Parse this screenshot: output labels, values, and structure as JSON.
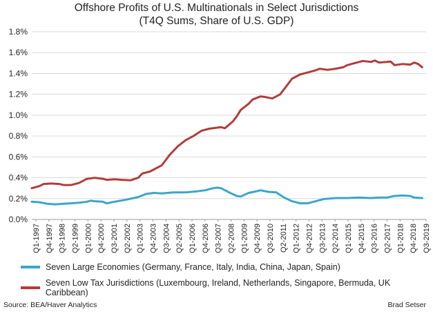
{
  "chart_data": {
    "type": "line",
    "title": "Offshore Profits of U.S. Multinationals in Select Jurisdictions",
    "subtitle": "(T4Q Sums, Share of U.S. GDP)",
    "xlabel": "",
    "ylabel": "",
    "ylim": [
      0,
      1.8
    ],
    "yticks": [
      "0.0%",
      "0.2%",
      "0.4%",
      "0.6%",
      "0.8%",
      "1.0%",
      "1.2%",
      "1.4%",
      "1.6%",
      "1.8%"
    ],
    "grid": true,
    "legend": "bottom",
    "x_start": "Q1-1997",
    "x_end": "Q3-2019",
    "xtick_labels": [
      "Q1-1997",
      "Q4-1997",
      "Q3-1998",
      "Q2-1999",
      "Q1-2000",
      "Q4-2000",
      "Q3-2001",
      "Q2-2002",
      "Q1-2003",
      "Q4-2003",
      "Q3-2004",
      "Q2-2005",
      "Q1-2006",
      "Q4-2006",
      "Q3-2007",
      "Q2-2008",
      "Q1-2009",
      "Q4-2009",
      "Q3-2010",
      "Q2-2011",
      "Q1-2012",
      "Q4-2012",
      "Q3-2013",
      "Q2-2014",
      "Q1-2015",
      "Q4-2015",
      "Q3-2016",
      "Q2-2017",
      "Q1-2018",
      "Q4-2018",
      "Q3-2019"
    ],
    "series": [
      {
        "name": "Seven Large Economies (Germany, France, Italy, India, China, Japan, Spain)",
        "color": "#3aa6c7",
        "points": [
          [
            0,
            0.17
          ],
          [
            2,
            0.165
          ],
          [
            4,
            0.15
          ],
          [
            6,
            0.145
          ],
          [
            8,
            0.15
          ],
          [
            10,
            0.155
          ],
          [
            12,
            0.16
          ],
          [
            14,
            0.17
          ],
          [
            15,
            0.18
          ],
          [
            16,
            0.175
          ],
          [
            18,
            0.17
          ],
          [
            19,
            0.155
          ],
          [
            21,
            0.17
          ],
          [
            24,
            0.19
          ],
          [
            27,
            0.215
          ],
          [
            29,
            0.245
          ],
          [
            31,
            0.255
          ],
          [
            33,
            0.25
          ],
          [
            36,
            0.26
          ],
          [
            39,
            0.26
          ],
          [
            42,
            0.27
          ],
          [
            44,
            0.28
          ],
          [
            46,
            0.3
          ],
          [
            47,
            0.305
          ],
          [
            48,
            0.3
          ],
          [
            50,
            0.26
          ],
          [
            52,
            0.225
          ],
          [
            53,
            0.22
          ],
          [
            55,
            0.255
          ],
          [
            57,
            0.27
          ],
          [
            58,
            0.28
          ],
          [
            60,
            0.265
          ],
          [
            62,
            0.26
          ],
          [
            64,
            0.21
          ],
          [
            66,
            0.175
          ],
          [
            68,
            0.155
          ],
          [
            70,
            0.155
          ],
          [
            72,
            0.175
          ],
          [
            74,
            0.195
          ],
          [
            77,
            0.205
          ],
          [
            80,
            0.205
          ],
          [
            83,
            0.21
          ],
          [
            86,
            0.205
          ],
          [
            88,
            0.21
          ],
          [
            90,
            0.21
          ],
          [
            92,
            0.225
          ],
          [
            94,
            0.23
          ],
          [
            96,
            0.225
          ],
          [
            97,
            0.21
          ],
          [
            99,
            0.205
          ],
          [
            90,
            0.21
          ]
        ]
      },
      {
        "name": "Seven Low Tax Jurisdictions (Luxembourg, Ireland, Netherlands, Singapore, Bermuda, UK Caribbean)",
        "color": "#b23b3b",
        "points": [
          [
            0,
            0.3
          ],
          [
            2,
            0.32
          ],
          [
            3,
            0.34
          ],
          [
            5,
            0.345
          ],
          [
            7,
            0.34
          ],
          [
            8,
            0.33
          ],
          [
            10,
            0.33
          ],
          [
            12,
            0.35
          ],
          [
            14,
            0.39
          ],
          [
            16,
            0.4
          ],
          [
            18,
            0.39
          ],
          [
            19,
            0.38
          ],
          [
            21,
            0.385
          ],
          [
            23,
            0.38
          ],
          [
            25,
            0.375
          ],
          [
            27,
            0.4
          ],
          [
            28,
            0.44
          ],
          [
            30,
            0.46
          ],
          [
            32,
            0.5
          ],
          [
            33,
            0.52
          ],
          [
            35,
            0.62
          ],
          [
            37,
            0.7
          ],
          [
            39,
            0.76
          ],
          [
            41,
            0.8
          ],
          [
            43,
            0.85
          ],
          [
            45,
            0.87
          ],
          [
            47,
            0.88
          ],
          [
            48,
            0.885
          ],
          [
            49,
            0.875
          ],
          [
            51,
            0.94
          ],
          [
            52,
            0.99
          ],
          [
            53,
            1.05
          ],
          [
            55,
            1.11
          ],
          [
            56,
            1.15
          ],
          [
            58,
            1.18
          ],
          [
            59,
            1.175
          ],
          [
            61,
            1.16
          ],
          [
            63,
            1.2
          ],
          [
            65,
            1.3
          ],
          [
            66,
            1.35
          ],
          [
            68,
            1.39
          ],
          [
            70,
            1.41
          ],
          [
            72,
            1.43
          ],
          [
            73,
            1.445
          ],
          [
            75,
            1.435
          ],
          [
            77,
            1.445
          ],
          [
            79,
            1.46
          ],
          [
            80,
            1.48
          ],
          [
            82,
            1.5
          ],
          [
            84,
            1.52
          ],
          [
            86,
            1.51
          ],
          [
            87,
            1.525
          ],
          [
            88,
            1.505
          ],
          [
            90,
            1.51
          ],
          [
            91,
            1.515
          ],
          [
            92,
            1.48
          ],
          [
            94,
            1.49
          ],
          [
            96,
            1.485
          ],
          [
            97,
            1.505
          ],
          [
            98,
            1.49
          ],
          [
            99,
            1.46
          ]
        ]
      }
    ]
  },
  "legend": {
    "items": [
      {
        "label": "Seven Large Economies (Germany, France, Italy, India, China, Japan, Spain)",
        "color": "#3aa6c7"
      },
      {
        "label": "Seven Low Tax Jurisdictions (Luxembourg, Ireland, Netherlands, Singapore, Bermuda, UK Caribbean)",
        "color": "#b23b3b"
      }
    ]
  },
  "footer": {
    "source": "Source: BEA/Haver Analytics",
    "author": "Brad Setser"
  }
}
